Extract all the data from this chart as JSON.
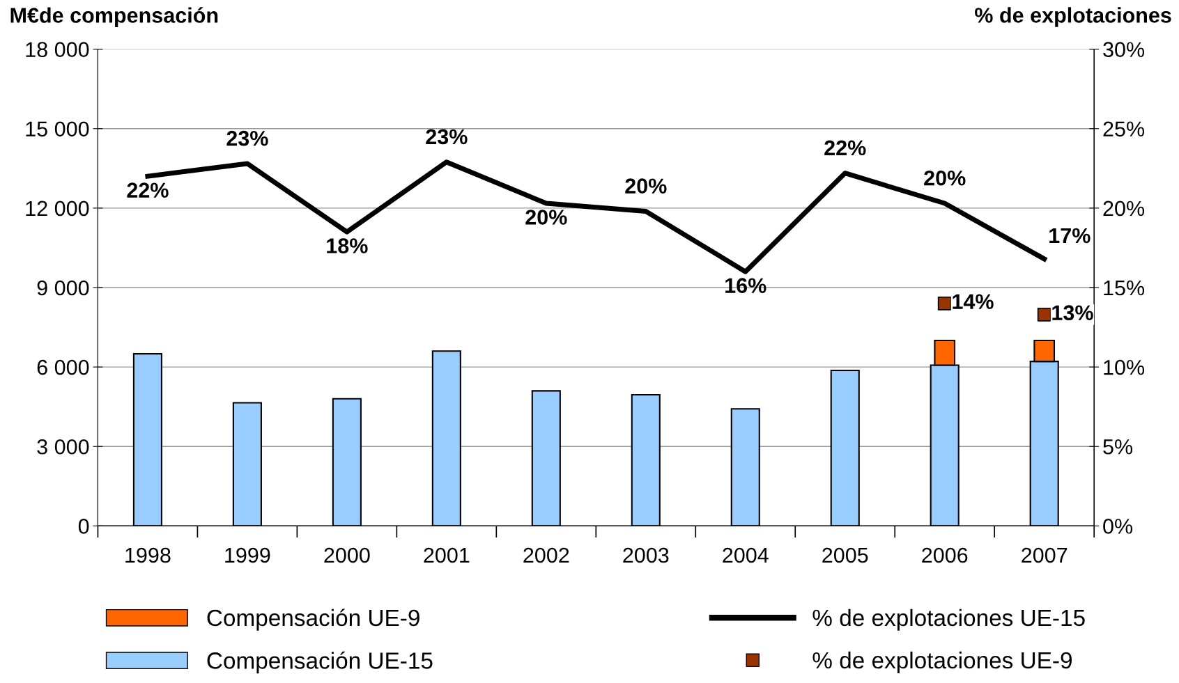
{
  "chart_data": {
    "type": "bar",
    "stacked": true,
    "ylabel": "M€de compensación",
    "y2label": "% de explotaciones",
    "categories": [
      "1998",
      "1999",
      "2000",
      "2001",
      "2002",
      "2003",
      "2004",
      "2005",
      "2006",
      "2007"
    ],
    "series": [
      {
        "name": "Compensación UE-15",
        "color": "#99ccff",
        "values": [
          6500,
          4650,
          4800,
          6600,
          5100,
          4950,
          4420,
          5870,
          6070,
          6210
        ]
      },
      {
        "name": "Compensación UE-9",
        "color": "#ff6600",
        "values": [
          null,
          null,
          null,
          null,
          null,
          null,
          null,
          null,
          930,
          790
        ]
      },
      {
        "name": "% de explotaciones UE-15",
        "type": "line",
        "axis": "y2",
        "color": "#000000",
        "values": [
          22.0,
          22.8,
          18.5,
          22.9,
          20.3,
          19.8,
          16.0,
          22.2,
          20.3,
          16.8
        ],
        "value_labels": [
          "22%",
          "23%",
          "18%",
          "23%",
          "20%",
          "20%",
          "16%",
          "22%",
          "20%",
          "17%"
        ]
      },
      {
        "name": "% de explotaciones UE-9",
        "type": "scatter",
        "axis": "y2",
        "marker": "square",
        "color": "#993300",
        "values": [
          null,
          null,
          null,
          null,
          null,
          null,
          null,
          null,
          14.0,
          13.3
        ],
        "value_labels": [
          null,
          null,
          null,
          null,
          null,
          null,
          null,
          null,
          "14%",
          "13%"
        ]
      }
    ],
    "ylim": [
      0,
      18000
    ],
    "yticks": [
      {
        "value": 0,
        "label": "0"
      },
      {
        "value": 3000,
        "label": "3 000"
      },
      {
        "value": 6000,
        "label": "6 000"
      },
      {
        "value": 9000,
        "label": "9 000"
      },
      {
        "value": 12000,
        "label": "12 000"
      },
      {
        "value": 15000,
        "label": "15 000"
      },
      {
        "value": 18000,
        "label": "18 000"
      }
    ],
    "y2lim": [
      0,
      30
    ],
    "y2ticks": [
      {
        "value": 0,
        "label": "0%"
      },
      {
        "value": 5,
        "label": "5%"
      },
      {
        "value": 10,
        "label": "10%"
      },
      {
        "value": 15,
        "label": "15%"
      },
      {
        "value": 20,
        "label": "20%"
      },
      {
        "value": 25,
        "label": "25%"
      },
      {
        "value": 30,
        "label": "30%"
      }
    ],
    "grid": "y",
    "legend": "bottom"
  }
}
